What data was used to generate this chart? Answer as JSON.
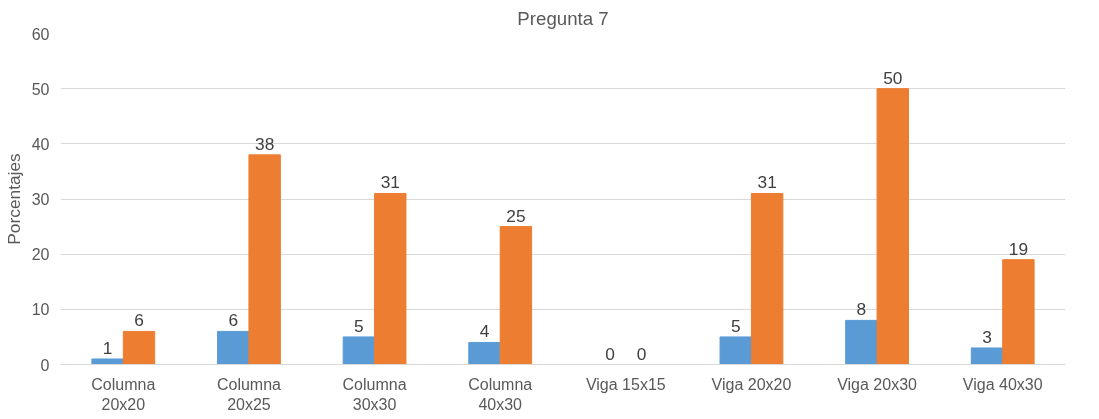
{
  "chart_data": {
    "type": "bar",
    "title": "Pregunta 7",
    "ylabel": "Porcentajes",
    "categories": [
      "Columna 20x20",
      "Columna 20x25",
      "Columna 30x30",
      "Columna 40x30",
      "Viga 15x15",
      "Viga 20x20",
      "Viga 20x30",
      "Viga 40x30"
    ],
    "series": [
      {
        "color": "#5b9bd5",
        "values": [
          1,
          6,
          5,
          4,
          0,
          5,
          8,
          3
        ]
      },
      {
        "color": "#ed7d31",
        "values": [
          6,
          38,
          31,
          25,
          0,
          31,
          50,
          19
        ]
      }
    ],
    "ylim": [
      0,
      60
    ],
    "yticks": [
      0,
      10,
      20,
      30,
      40,
      50,
      60
    ],
    "grid": "y",
    "data_labels": true
  }
}
